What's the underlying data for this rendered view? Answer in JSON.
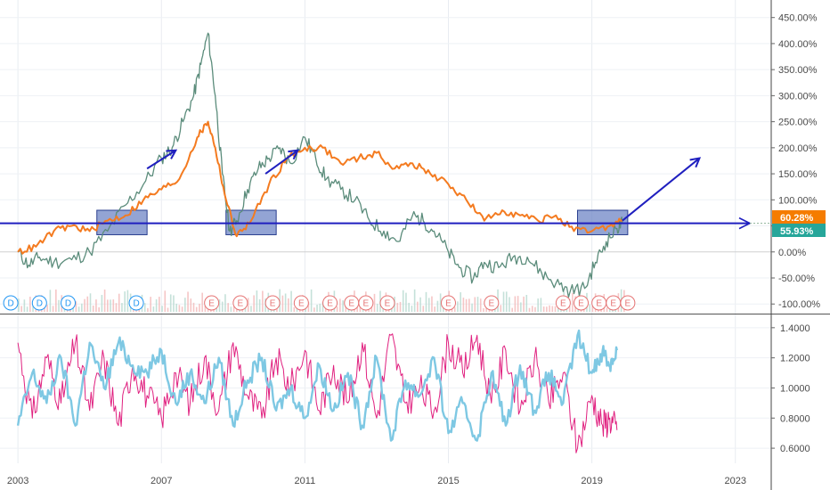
{
  "chart_data": [
    {
      "type": "line",
      "panel": "main",
      "y_scale": "percent",
      "ylim": [
        -115,
        470
      ],
      "y_ticks": [
        "450.00%",
        "400.00%",
        "350.00%",
        "300.00%",
        "250.00%",
        "200.00%",
        "150.00%",
        "100.00%",
        "50.00%",
        "0.00%",
        "-50.00%",
        "-100.00%"
      ],
      "y_tick_values": [
        450,
        400,
        350,
        300,
        250,
        200,
        150,
        100,
        50,
        0,
        -50,
        -100
      ],
      "x_ticks": [
        "2003",
        "2007",
        "2011",
        "2015",
        "2019",
        "2023"
      ],
      "x_tick_years": [
        2003,
        2007,
        2011,
        2015,
        2019,
        2023
      ],
      "xlim": [
        2002.5,
        2024
      ],
      "series": [
        {
          "color": "#5b8c7b",
          "points": [
            [
              2003.0,
              0
            ],
            [
              2003.3,
              -25
            ],
            [
              2003.6,
              -10
            ],
            [
              2004.0,
              -20
            ],
            [
              2004.5,
              -15
            ],
            [
              2005.0,
              0
            ],
            [
              2005.5,
              40
            ],
            [
              2006.0,
              90
            ],
            [
              2006.5,
              130
            ],
            [
              2007.0,
              180
            ],
            [
              2007.3,
              200
            ],
            [
              2007.6,
              250
            ],
            [
              2007.9,
              300
            ],
            [
              2008.1,
              360
            ],
            [
              2008.3,
              420
            ],
            [
              2008.5,
              300
            ],
            [
              2008.7,
              150
            ],
            [
              2008.9,
              40
            ],
            [
              2009.1,
              60
            ],
            [
              2009.4,
              120
            ],
            [
              2009.7,
              160
            ],
            [
              2010.0,
              180
            ],
            [
              2010.3,
              200
            ],
            [
              2010.6,
              170
            ],
            [
              2011.0,
              220
            ],
            [
              2011.3,
              180
            ],
            [
              2011.6,
              140
            ],
            [
              2012.0,
              120
            ],
            [
              2012.4,
              100
            ],
            [
              2012.8,
              60
            ],
            [
              2013.2,
              40
            ],
            [
              2013.6,
              20
            ],
            [
              2014.0,
              70
            ],
            [
              2014.3,
              60
            ],
            [
              2014.6,
              40
            ],
            [
              2015.0,
              0
            ],
            [
              2015.3,
              -30
            ],
            [
              2015.7,
              -50
            ],
            [
              2016.0,
              -20
            ],
            [
              2016.4,
              -30
            ],
            [
              2016.8,
              -10
            ],
            [
              2017.2,
              -10
            ],
            [
              2017.6,
              -40
            ],
            [
              2018.0,
              -60
            ],
            [
              2018.4,
              -75
            ],
            [
              2018.8,
              -70
            ],
            [
              2019.1,
              -20
            ],
            [
              2019.4,
              20
            ],
            [
              2019.7,
              45
            ],
            [
              2019.85,
              56
            ]
          ]
        },
        {
          "color": "#f47b20",
          "points": [
            [
              2003.0,
              0
            ],
            [
              2003.5,
              10
            ],
            [
              2004.0,
              40
            ],
            [
              2004.5,
              50
            ],
            [
              2005.0,
              40
            ],
            [
              2005.5,
              60
            ],
            [
              2006.0,
              70
            ],
            [
              2006.5,
              100
            ],
            [
              2007.0,
              120
            ],
            [
              2007.5,
              140
            ],
            [
              2008.0,
              220
            ],
            [
              2008.3,
              250
            ],
            [
              2008.5,
              200
            ],
            [
              2008.8,
              100
            ],
            [
              2009.1,
              30
            ],
            [
              2009.5,
              60
            ],
            [
              2010.0,
              130
            ],
            [
              2010.5,
              180
            ],
            [
              2011.0,
              200
            ],
            [
              2011.5,
              200
            ],
            [
              2012.0,
              170
            ],
            [
              2012.5,
              180
            ],
            [
              2013.0,
              190
            ],
            [
              2013.5,
              160
            ],
            [
              2014.0,
              170
            ],
            [
              2014.5,
              150
            ],
            [
              2015.0,
              130
            ],
            [
              2015.5,
              100
            ],
            [
              2016.0,
              60
            ],
            [
              2016.5,
              80
            ],
            [
              2017.0,
              70
            ],
            [
              2017.5,
              60
            ],
            [
              2018.0,
              70
            ],
            [
              2018.5,
              40
            ],
            [
              2019.0,
              40
            ],
            [
              2019.5,
              50
            ],
            [
              2019.85,
              60.28
            ]
          ]
        }
      ],
      "last_values": [
        {
          "label": "60.28%",
          "value": 60.28,
          "color": "#f57c00"
        },
        {
          "label": "55.93%",
          "value": 55.93,
          "color": "#26a69a"
        }
      ],
      "annotations": {
        "horizontal_line_value": 55,
        "highlight_boxes": [
          {
            "x0": 2005.2,
            "x1": 2006.6,
            "y0": 33,
            "y1": 80
          },
          {
            "x0": 2008.8,
            "x1": 2010.2,
            "y0": 33,
            "y1": 80
          },
          {
            "x0": 2018.6,
            "x1": 2020.0,
            "y0": 33,
            "y1": 80
          }
        ],
        "arrows": [
          {
            "from": [
              2006.6,
              160
            ],
            "to": [
              2007.4,
              195
            ]
          },
          {
            "from": [
              2009.9,
              150
            ],
            "to": [
              2010.8,
              195
            ]
          },
          {
            "from": [
              2019.85,
              60
            ],
            "to": [
              2022.0,
              180
            ]
          }
        ],
        "events": [
          {
            "year": 2002.8,
            "label": "D"
          },
          {
            "year": 2003.6,
            "label": "D"
          },
          {
            "year": 2004.4,
            "label": "D"
          },
          {
            "year": 2006.3,
            "label": "D"
          },
          {
            "year": 2008.4,
            "label": "E"
          },
          {
            "year": 2009.2,
            "label": "E"
          },
          {
            "year": 2010.1,
            "label": "E"
          },
          {
            "year": 2010.9,
            "label": "E"
          },
          {
            "year": 2011.7,
            "label": "E"
          },
          {
            "year": 2012.3,
            "label": "E"
          },
          {
            "year": 2012.7,
            "label": "E"
          },
          {
            "year": 2013.3,
            "label": "E"
          },
          {
            "year": 2015.0,
            "label": "E"
          },
          {
            "year": 2016.2,
            "label": "E"
          },
          {
            "year": 2018.2,
            "label": "E"
          },
          {
            "year": 2018.7,
            "label": "E"
          },
          {
            "year": 2019.2,
            "label": "E"
          },
          {
            "year": 2019.6,
            "label": "E"
          },
          {
            "year": 2020.0,
            "label": "E"
          }
        ]
      }
    },
    {
      "type": "line",
      "panel": "indicator",
      "ylim": [
        0.5,
        1.47
      ],
      "y_ticks": [
        "1.4000",
        "1.2000",
        "1.0000",
        "0.8000",
        "0.6000"
      ],
      "y_tick_values": [
        1.4,
        1.2,
        1.0,
        0.8,
        0.6
      ],
      "series": [
        {
          "color": "#e0207f",
          "points": [
            [
              2003.0,
              1.3
            ],
            [
              2003.4,
              0.8
            ],
            [
              2003.8,
              1.2
            ],
            [
              2004.2,
              0.9
            ],
            [
              2004.6,
              1.3
            ],
            [
              2005.0,
              0.85
            ],
            [
              2005.4,
              1.2
            ],
            [
              2005.8,
              0.75
            ],
            [
              2006.2,
              1.15
            ],
            [
              2006.6,
              0.95
            ],
            [
              2007.0,
              0.8
            ],
            [
              2007.4,
              1.1
            ],
            [
              2007.8,
              0.9
            ],
            [
              2008.2,
              1.2
            ],
            [
              2008.6,
              0.85
            ],
            [
              2009.0,
              1.3
            ],
            [
              2009.4,
              0.95
            ],
            [
              2009.8,
              0.8
            ],
            [
              2010.2,
              1.2
            ],
            [
              2010.6,
              1.0
            ],
            [
              2011.0,
              1.25
            ],
            [
              2011.4,
              0.85
            ],
            [
              2011.8,
              1.15
            ],
            [
              2012.2,
              0.9
            ],
            [
              2012.6,
              1.3
            ],
            [
              2013.0,
              0.8
            ],
            [
              2013.4,
              1.35
            ],
            [
              2013.8,
              0.9
            ],
            [
              2014.2,
              1.0
            ],
            [
              2014.6,
              0.85
            ],
            [
              2015.0,
              1.3
            ],
            [
              2015.4,
              1.1
            ],
            [
              2015.8,
              1.35
            ],
            [
              2016.2,
              0.9
            ],
            [
              2016.6,
              1.25
            ],
            [
              2017.0,
              0.85
            ],
            [
              2017.4,
              1.2
            ],
            [
              2017.8,
              0.9
            ],
            [
              2018.2,
              1.1
            ],
            [
              2018.6,
              0.6
            ],
            [
              2019.0,
              0.95
            ],
            [
              2019.3,
              0.75
            ],
            [
              2019.5,
              0.8
            ],
            [
              2019.7,
              0.72
            ]
          ]
        },
        {
          "color": "#7ec8e3",
          "points": [
            [
              2003.0,
              0.75
            ],
            [
              2003.4,
              1.1
            ],
            [
              2003.8,
              0.9
            ],
            [
              2004.2,
              1.2
            ],
            [
              2004.6,
              0.75
            ],
            [
              2005.0,
              1.3
            ],
            [
              2005.4,
              1.0
            ],
            [
              2005.8,
              1.3
            ],
            [
              2006.2,
              1.15
            ],
            [
              2006.6,
              1.1
            ],
            [
              2007.0,
              1.25
            ],
            [
              2007.4,
              0.9
            ],
            [
              2007.8,
              1.1
            ],
            [
              2008.2,
              0.9
            ],
            [
              2008.6,
              1.2
            ],
            [
              2009.0,
              0.75
            ],
            [
              2009.4,
              1.05
            ],
            [
              2009.8,
              1.2
            ],
            [
              2010.2,
              0.85
            ],
            [
              2010.6,
              1.0
            ],
            [
              2011.0,
              0.8
            ],
            [
              2011.4,
              1.15
            ],
            [
              2011.8,
              0.85
            ],
            [
              2012.2,
              1.1
            ],
            [
              2012.6,
              0.75
            ],
            [
              2013.0,
              1.2
            ],
            [
              2013.4,
              0.65
            ],
            [
              2013.8,
              1.05
            ],
            [
              2014.2,
              0.95
            ],
            [
              2014.6,
              1.2
            ],
            [
              2015.0,
              0.7
            ],
            [
              2015.4,
              0.9
            ],
            [
              2015.8,
              0.65
            ],
            [
              2016.2,
              1.1
            ],
            [
              2016.6,
              0.75
            ],
            [
              2017.0,
              1.15
            ],
            [
              2017.4,
              0.85
            ],
            [
              2017.8,
              1.1
            ],
            [
              2018.2,
              0.9
            ],
            [
              2018.6,
              1.35
            ],
            [
              2019.0,
              1.1
            ],
            [
              2019.3,
              1.25
            ],
            [
              2019.5,
              1.15
            ],
            [
              2019.7,
              1.25
            ]
          ]
        }
      ]
    }
  ]
}
